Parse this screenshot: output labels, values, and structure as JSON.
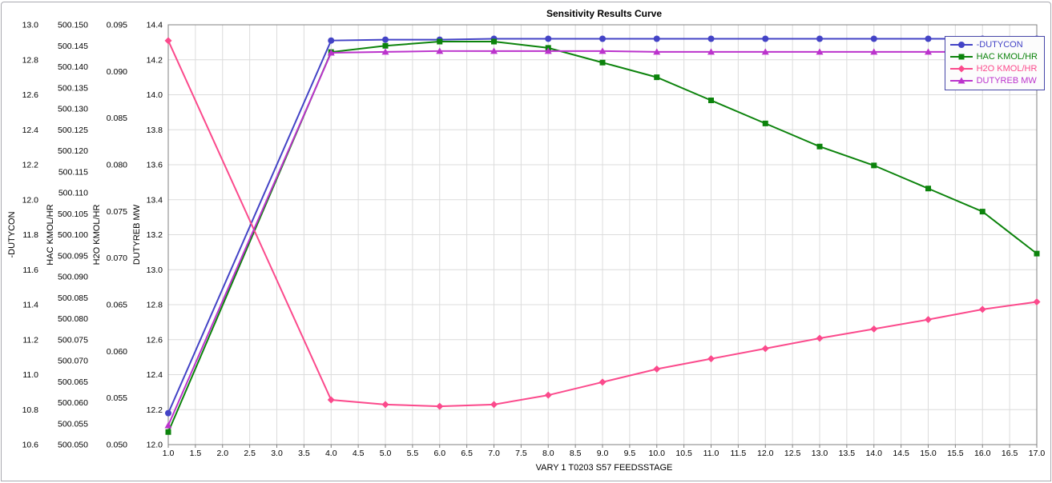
{
  "title": "Sensitivity Results Curve",
  "chart_data": {
    "type": "line",
    "title": "Sensitivity Results Curve",
    "xlabel": "VARY  1 T0203 S57 FEEDSSTAGE",
    "x_min": 1.0,
    "x_max": 17.0,
    "x_step": 0.5,
    "x_decimals": 1,
    "grid": true,
    "legend_position": "top-right",
    "x": [
      1.0,
      4.0,
      5.0,
      6.0,
      7.0,
      8.0,
      9.0,
      10.0,
      11.0,
      12.0,
      13.0,
      14.0,
      15.0,
      16.0,
      17.0
    ],
    "axes": [
      {
        "label": "-DUTYCON",
        "min": 10.6,
        "max": 13.0,
        "step": 0.2,
        "decimals": 1
      },
      {
        "label": "HAC KMOL/HR",
        "min": 500.05,
        "max": 500.15,
        "step": 0.005,
        "decimals": 3
      },
      {
        "label": "H2O KMOL/HR",
        "min": 0.05,
        "max": 0.095,
        "step": 0.005,
        "decimals": 3
      },
      {
        "label": "DUTYREB MW",
        "min": 12.0,
        "max": 14.4,
        "step": 0.2,
        "decimals": 1
      }
    ],
    "series": [
      {
        "name": "-DUTYCON",
        "axis": "-DUTYCON",
        "color": "#4343c6",
        "marker": "circle",
        "values": [
          10.78,
          12.91,
          12.915,
          12.915,
          12.92,
          12.92,
          12.92,
          12.92,
          12.92,
          12.92,
          12.92,
          12.92,
          12.92,
          12.92,
          12.92
        ]
      },
      {
        "name": "HAC KMOL/HR",
        "axis": "HAC KMOL/HR",
        "color": "#0c830c",
        "marker": "square",
        "values": [
          500.053,
          500.1435,
          500.145,
          500.146,
          500.146,
          500.1445,
          500.141,
          500.1375,
          500.132,
          500.1265,
          500.121,
          500.1165,
          500.111,
          500.1055,
          500.0955
        ]
      },
      {
        "name": "H2O KMOL/HR",
        "axis": "H2O KMOL/HR",
        "color": "#fb4a8c",
        "marker": "diamond",
        "values": [
          0.0933,
          0.0548,
          0.0543,
          0.0541,
          0.0543,
          0.0553,
          0.0567,
          0.0581,
          0.0592,
          0.0603,
          0.0614,
          0.0624,
          0.0634,
          0.0645,
          0.0653
        ]
      },
      {
        "name": "DUTYREB MW",
        "axis": "DUTYREB MW",
        "color": "#bb33cc",
        "marker": "triangle",
        "values": [
          12.11,
          14.24,
          14.245,
          14.25,
          14.25,
          14.25,
          14.25,
          14.245,
          14.245,
          14.245,
          14.245,
          14.245,
          14.245,
          14.245,
          14.245
        ]
      }
    ],
    "colors": {
      "gridline": "#dcdcdc",
      "plot_border": "#808080",
      "legend_border": "#4646a8"
    }
  }
}
